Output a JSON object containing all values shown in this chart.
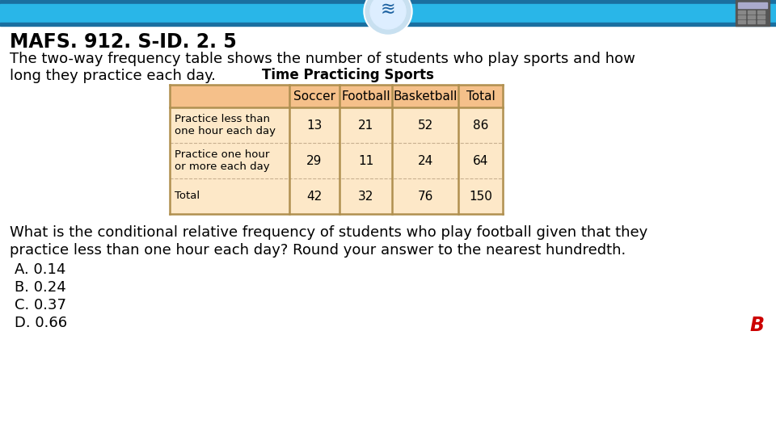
{
  "title": "MAFS. 912. S-ID. 2. 5",
  "bg_color": "#ffffff",
  "header_bar_dark_color": "#1a6fa0",
  "header_bar_bright_color": "#29b6e8",
  "intro_text_line1": "The two-way frequency table shows the number of students who play sports and how",
  "intro_text_line2": "long they practice each day.",
  "table_title": "Time Practicing Sports",
  "table_header_bg": "#f5c08a",
  "table_row_bg": "#fde8c8",
  "table_border_color": "#b09050",
  "table_inner_border": "#c8b090",
  "table_cols": [
    "",
    "Soccer",
    "Football",
    "Basketball",
    "Total"
  ],
  "table_rows": [
    [
      "Practice less than\none hour each day",
      "13",
      "21",
      "52",
      "86"
    ],
    [
      "Practice one hour\nor more each day",
      "29",
      "11",
      "24",
      "64"
    ],
    [
      "Total",
      "42",
      "32",
      "76",
      "150"
    ]
  ],
  "question_line1": "What is the conditional relative frequency of students who play football given that they",
  "question_line2": "practice less than one hour each day? Round your answer to the nearest hundredth.",
  "choices": [
    "A. 0.14",
    "B. 0.24",
    "C. 0.37",
    "D. 0.66"
  ],
  "answer": "B",
  "answer_color": "#cc0000",
  "text_color": "#000000",
  "title_fontsize": 17,
  "body_fontsize": 13,
  "choice_fontsize": 13,
  "table_fontsize": 11,
  "table_title_fontsize": 12
}
